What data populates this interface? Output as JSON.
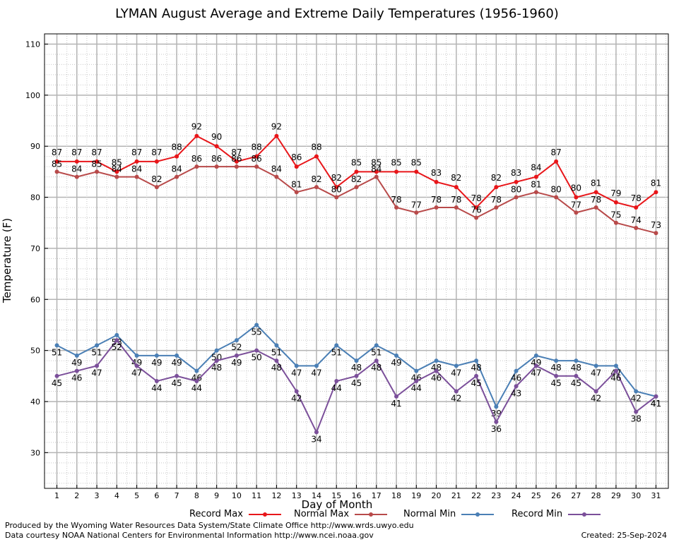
{
  "title": "LYMAN August Average and Extreme Daily Temperatures (1956-1960)",
  "footer": {
    "line1": "Produced by the Wyoming Water Resources Data System/State Climate Office http://www.wrds.uwyo.edu",
    "line2": "Data courtesy NOAA National Centers for Environmental Information http://www.ncei.noaa.gov",
    "created": "Created:  25-Sep-2024"
  },
  "chart_data": {
    "type": "line",
    "title": "LYMAN August Average and Extreme Daily Temperatures (1956-1960)",
    "xlabel": "Day of Month",
    "ylabel": "Temperature (F)",
    "x": [
      1,
      2,
      3,
      4,
      5,
      6,
      7,
      8,
      9,
      10,
      11,
      12,
      13,
      14,
      15,
      16,
      17,
      18,
      19,
      20,
      21,
      22,
      23,
      24,
      25,
      26,
      27,
      28,
      29,
      30,
      31
    ],
    "ylim": [
      23,
      112
    ],
    "yticks": [
      30,
      40,
      50,
      60,
      70,
      80,
      90,
      100,
      110
    ],
    "grid": true,
    "legend_position": "bottom",
    "series": [
      {
        "name": "Record Max",
        "color": "#e8161a",
        "values": [
          87,
          87,
          87,
          85,
          87,
          87,
          88,
          92,
          90,
          87,
          88,
          92,
          86,
          88,
          82,
          85,
          85,
          85,
          85,
          83,
          82,
          78,
          82,
          83,
          84,
          87,
          80,
          81,
          79,
          78,
          81
        ]
      },
      {
        "name": "Normal Max",
        "color": "#b84a4a",
        "values": [
          85,
          84,
          85,
          84,
          84,
          82,
          84,
          86,
          86,
          86,
          86,
          84,
          81,
          82,
          80,
          82,
          84,
          78,
          77,
          78,
          78,
          76,
          78,
          80,
          81,
          80,
          77,
          78,
          75,
          74,
          73
        ]
      },
      {
        "name": "Normal Min",
        "color": "#4a7fb5",
        "values": [
          51,
          49,
          51,
          53,
          49,
          49,
          49,
          46,
          50,
          52,
          55,
          51,
          47,
          47,
          51,
          48,
          51,
          49,
          46,
          48,
          47,
          48,
          39,
          46,
          49,
          48,
          48,
          47,
          47,
          42,
          41
        ]
      },
      {
        "name": "Record Min",
        "color": "#7b4f9a",
        "values": [
          45,
          46,
          47,
          52,
          47,
          44,
          45,
          44,
          48,
          49,
          50,
          48,
          42,
          34,
          44,
          45,
          48,
          41,
          44,
          46,
          42,
          45,
          36,
          43,
          47,
          45,
          45,
          42,
          46,
          38,
          41
        ]
      }
    ]
  }
}
